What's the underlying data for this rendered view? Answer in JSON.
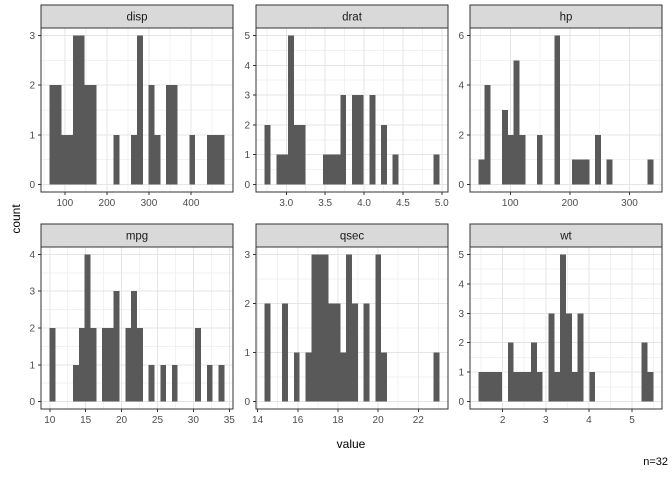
{
  "annotation": {
    "n_label": "n=32"
  },
  "colors": {
    "bar": "#595959",
    "strip_bg": "#D9D9D9",
    "strip_border": "#333333",
    "strip_text": "#1A1A1A",
    "panel_bg": "#FFFFFF",
    "panel_border": "#333333",
    "grid_major": "#E5E5E5",
    "grid_minor": "#F2F2F2",
    "axis_text": "#4D4D4D",
    "tick_mark": "#333333",
    "title_text": "#000000"
  },
  "chart_data": {
    "type": "bar",
    "subtype": "faceted-histograms",
    "title": "",
    "xlabel": "value",
    "ylabel": "count",
    "sample_size": 32,
    "layout": {
      "rows": 2,
      "cols": 3,
      "grid": "on",
      "legend": "none"
    },
    "facets": [
      {
        "label": "disp",
        "bin_start": 64.18793,
        "bin_width": 13.82414,
        "counts": [
          2,
          2,
          1,
          1,
          3,
          3,
          2,
          2,
          0,
          0,
          0,
          1,
          0,
          0,
          1,
          3,
          0,
          2,
          1,
          0,
          2,
          2,
          0,
          0,
          1,
          0,
          0,
          1,
          1,
          1
        ],
        "x_ticks": [
          100,
          200,
          300,
          400
        ],
        "x_tick_labels": [
          "100",
          "200",
          "300",
          "400"
        ],
        "y_ticks": [
          0,
          1,
          2,
          3
        ],
        "y_tick_labels": [
          "0",
          "1",
          "2",
          "3"
        ],
        "y_max": 3
      },
      {
        "label": "drat",
        "bin_start": 2.72259,
        "bin_width": 0.07483,
        "counts": [
          2,
          0,
          1,
          1,
          5,
          2,
          2,
          0,
          0,
          0,
          1,
          1,
          1,
          3,
          0,
          3,
          3,
          0,
          3,
          0,
          2,
          0,
          1,
          0,
          0,
          0,
          0,
          0,
          0,
          1
        ],
        "x_ticks": [
          3.0,
          3.5,
          4.0,
          4.5,
          5.0
        ],
        "x_tick_labels": [
          "3.0",
          "3.5",
          "4.0",
          "4.5",
          "5.0"
        ],
        "y_ticks": [
          0,
          1,
          2,
          3,
          4,
          5
        ],
        "y_tick_labels": [
          "0",
          "1",
          "2",
          "3",
          "4",
          "5"
        ],
        "y_max": 5
      },
      {
        "label": "hp",
        "bin_start": 47.12069,
        "bin_width": 9.75862,
        "counts": [
          1,
          4,
          0,
          0,
          3,
          2,
          5,
          2,
          0,
          0,
          2,
          0,
          0,
          6,
          0,
          0,
          1,
          1,
          1,
          0,
          2,
          0,
          1,
          0,
          0,
          0,
          0,
          0,
          0,
          1
        ],
        "x_ticks": [
          100,
          200,
          300
        ],
        "x_tick_labels": [
          "100",
          "200",
          "300"
        ],
        "y_ticks": [
          0,
          2,
          4,
          6
        ],
        "y_tick_labels": [
          "0",
          "2",
          "4",
          "6"
        ],
        "y_max": 6
      },
      {
        "label": "mpg",
        "bin_start": 9.99483,
        "bin_width": 0.81034,
        "counts": [
          2,
          0,
          0,
          0,
          1,
          2,
          4,
          2,
          0,
          2,
          2,
          3,
          0,
          2,
          3,
          2,
          0,
          1,
          0,
          1,
          0,
          1,
          0,
          0,
          0,
          2,
          0,
          1,
          0,
          1
        ],
        "x_ticks": [
          10,
          15,
          20,
          25,
          30,
          35
        ],
        "x_tick_labels": [
          "10",
          "15",
          "20",
          "25",
          "30",
          "35"
        ],
        "y_ticks": [
          0,
          1,
          2,
          3,
          4
        ],
        "y_tick_labels": [
          "0",
          "1",
          "2",
          "3",
          "4"
        ],
        "y_max": 4
      },
      {
        "label": "qsec",
        "bin_start": 14.35517,
        "bin_width": 0.28966,
        "counts": [
          2,
          0,
          0,
          2,
          0,
          1,
          0,
          1,
          3,
          3,
          3,
          2,
          2,
          1,
          3,
          2,
          0,
          2,
          0,
          3,
          1,
          0,
          0,
          0,
          0,
          0,
          0,
          0,
          0,
          1
        ],
        "x_ticks": [
          14,
          16,
          18,
          20,
          22
        ],
        "x_tick_labels": [
          "14",
          "16",
          "18",
          "20",
          "22"
        ],
        "y_ticks": [
          0,
          1,
          2,
          3
        ],
        "y_tick_labels": [
          "0",
          "1",
          "2",
          "3"
        ],
        "y_max": 3
      },
      {
        "label": "wt",
        "bin_start": 1.44557,
        "bin_width": 0.13486,
        "counts": [
          1,
          1,
          1,
          1,
          0,
          2,
          1,
          1,
          1,
          2,
          1,
          0,
          3,
          1,
          5,
          3,
          1,
          3,
          0,
          1,
          0,
          0,
          0,
          0,
          0,
          0,
          0,
          0,
          2,
          1
        ],
        "x_ticks": [
          2,
          3,
          4,
          5
        ],
        "x_tick_labels": [
          "2",
          "3",
          "4",
          "5"
        ],
        "y_ticks": [
          0,
          1,
          2,
          3,
          4,
          5
        ],
        "y_tick_labels": [
          "0",
          "1",
          "2",
          "3",
          "4",
          "5"
        ],
        "y_max": 5
      }
    ]
  }
}
